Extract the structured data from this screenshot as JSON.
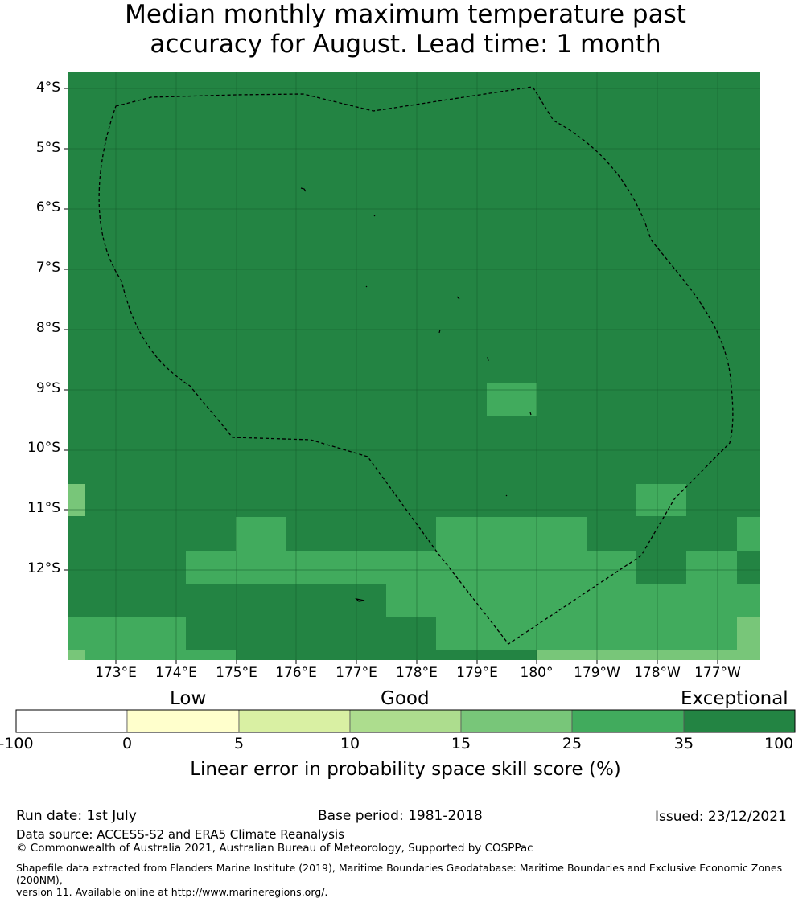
{
  "title_line1": "Median monthly maximum temperature past",
  "title_line2": "accuracy for August. Lead time: 1 month",
  "lat_labels": [
    "4°S",
    "5°S",
    "6°S",
    "7°S",
    "8°S",
    "9°S",
    "10°S",
    "11°S",
    "12°S"
  ],
  "lon_labels": [
    "173°E",
    "174°E",
    "175°E",
    "176°E",
    "177°E",
    "178°E",
    "179°E",
    "180°",
    "179°W",
    "178°W",
    "177°W"
  ],
  "colorbar": {
    "categories": [
      "Low",
      "Good",
      "Exceptional"
    ],
    "ticks": [
      "-100",
      "0",
      "5",
      "10",
      "15",
      "25",
      "35",
      "100"
    ],
    "colors": [
      "#ffffff",
      "#ffffcc",
      "#d9f0a3",
      "#addd8e",
      "#78c679",
      "#41ab5d",
      "#238443"
    ],
    "label": "Linear error in probability space skill score (%)"
  },
  "map_colors": {
    "exceptional": "#238443",
    "good_high": "#41ab5d",
    "good_low": "#78c679"
  },
  "footer": {
    "run_date": "Run date: 1st July",
    "base_period": "Base period: 1981-2018",
    "issued": "Issued: 23/12/2021",
    "data_source": "Data source: ACCESS-S2 and ERA5 Climate Reanalysis",
    "copyright": "© Commonwealth of Australia 2021, Australian Bureau of Meteorology, Supported by COSPPac",
    "shapefile_line1": "Shapefile data extracted from Flanders Marine Institute (2019), Maritime Boundaries Geodatabase: Maritime Boundaries and Exclusive Economic Zones (200NM),",
    "shapefile_line2": "version 11. Available online at http://www.marineregions.org/."
  }
}
